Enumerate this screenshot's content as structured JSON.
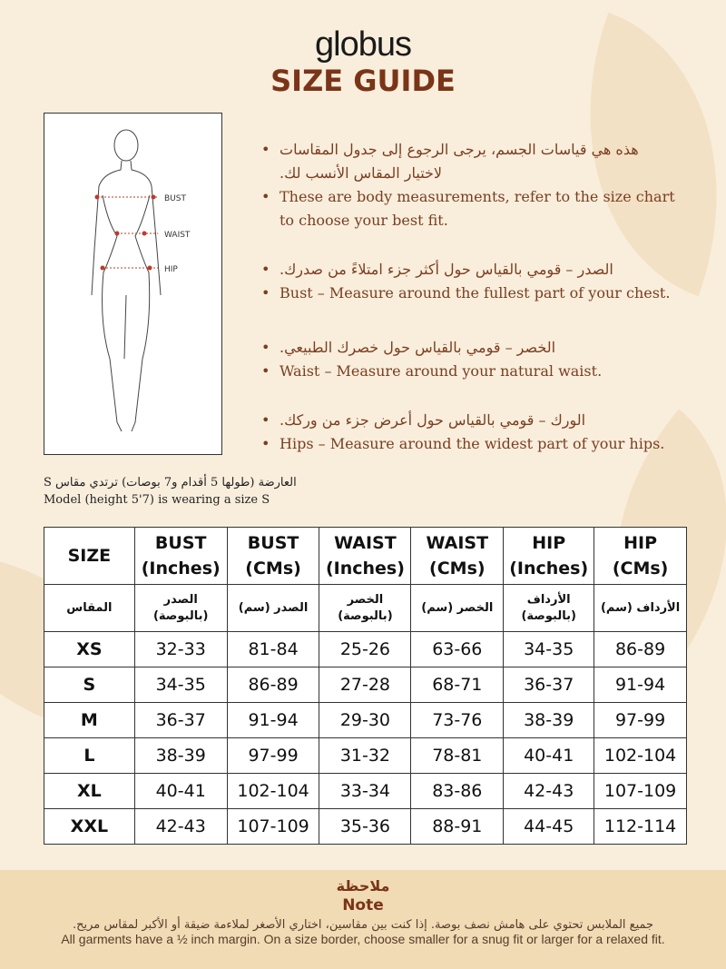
{
  "brand": "globus",
  "title": "SIZE GUIDE",
  "figure": {
    "labels": [
      "BUST",
      "WAIST",
      "HIP"
    ],
    "marker_color": "#c0392b"
  },
  "bullets": [
    {
      "ar": "هذه هي قياسات الجسم، يرجى الرجوع إلى جدول المقاسات لاختيار المقاس الأنسب لك.",
      "en": "These are body measurements, refer to the size chart to choose your best fit."
    },
    {
      "ar": "الصدر – قومي بالقياس حول أكثر جزء امتلاءً من صدرك.",
      "en": "Bust – Measure around the fullest part of your chest."
    },
    {
      "ar": "الخصر – قومي بالقياس حول خصرك الطبيعي.",
      "en": "Waist – Measure around your natural waist."
    },
    {
      "ar": "الورك – قومي بالقياس حول أعرض جزء من وركك.",
      "en": "Hips – Measure around the widest part of your hips."
    }
  ],
  "model": {
    "ar": "العارضة (طولها 5 أقدام و7 بوصات) ترتدي مقاس S",
    "en": "Model (height 5'7) is wearing a size S"
  },
  "table": {
    "headers": [
      "SIZE",
      "BUST (Inches)",
      "BUST (CMs)",
      "WAIST (Inches)",
      "WAIST (CMs)",
      "HIP (Inches)",
      "HIP (CMs)"
    ],
    "headers_ar": [
      "المقاس",
      "الصدر (بالبوصة)",
      "الصدر (سم)",
      "الخصر (بالبوصة)",
      "الخصر (سم)",
      "الأرداف (بالبوصة)",
      "الأرداف (سم)"
    ],
    "rows": [
      [
        "XS",
        "32-33",
        "81-84",
        "25-26",
        "63-66",
        "34-35",
        "86-89"
      ],
      [
        "S",
        "34-35",
        "86-89",
        "27-28",
        "68-71",
        "36-37",
        "91-94"
      ],
      [
        "M",
        "36-37",
        "91-94",
        "29-30",
        "73-76",
        "38-39",
        "97-99"
      ],
      [
        "L",
        "38-39",
        "97-99",
        "31-32",
        "78-81",
        "40-41",
        "102-104"
      ],
      [
        "XL",
        "40-41",
        "102-104",
        "33-34",
        "83-86",
        "42-43",
        "107-109"
      ],
      [
        "XXL",
        "42-43",
        "107-109",
        "35-36",
        "88-91",
        "44-45",
        "112-114"
      ]
    ]
  },
  "note": {
    "title_ar": "ملاحظة",
    "title_en": "Note",
    "text_ar": "جميع الملابس تحتوي على هامش نصف بوصة. إذا كنت بين مقاسين، اختاري الأصغر لملاءمة ضيقة أو الأكبر لمقاس مريح.",
    "text_en": "All garments have a ½ inch margin. On a size border, choose smaller for a snug fit or larger for a relaxed fit."
  }
}
